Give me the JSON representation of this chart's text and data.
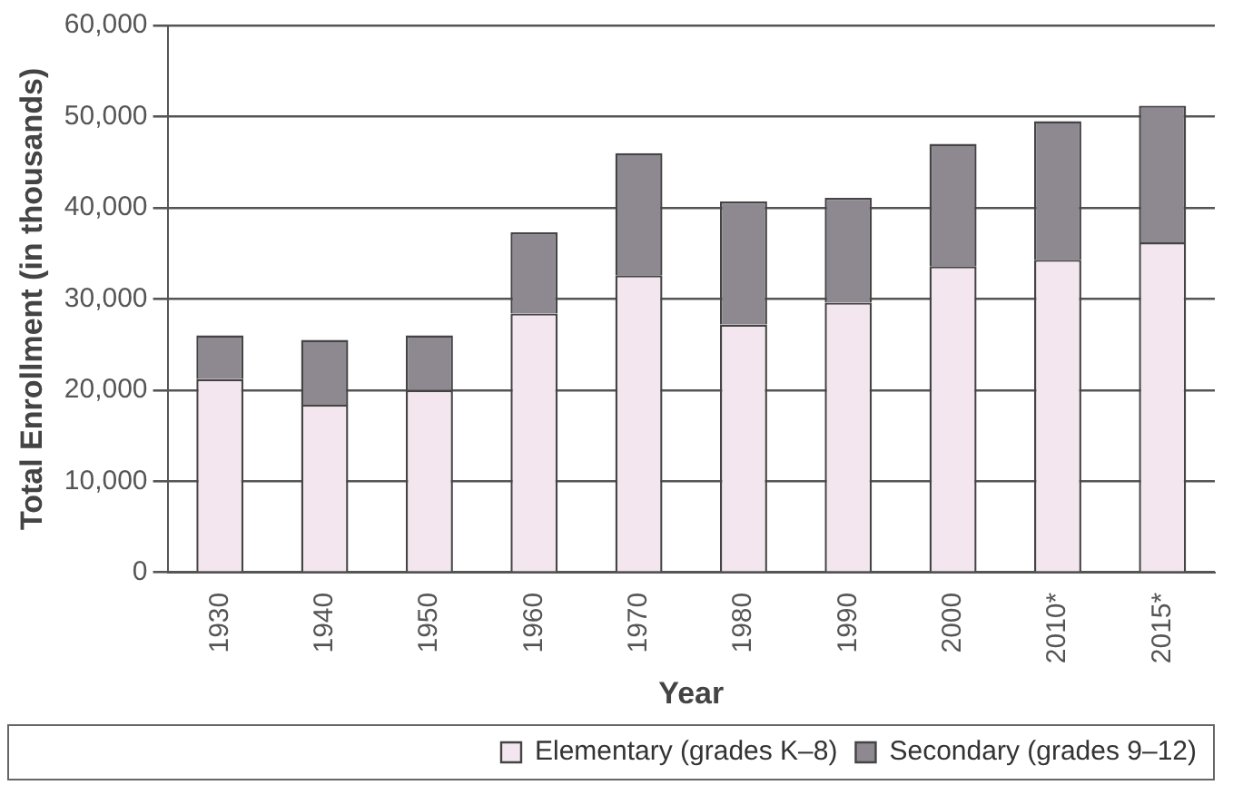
{
  "chart_data": {
    "type": "bar",
    "stacked": true,
    "xlabel": "Year",
    "ylabel": "Total Enrollment (in thousands)",
    "categories": [
      "1930",
      "1940",
      "1950",
      "1960",
      "1970",
      "1980",
      "1990",
      "2000",
      "2010*",
      "2015*"
    ],
    "series": [
      {
        "name": "Elementary (grades K–8)",
        "color": "#f3e6ee",
        "values": [
          21200,
          18400,
          20000,
          28400,
          32600,
          27200,
          29600,
          33600,
          34300,
          36200
        ]
      },
      {
        "name": "Secondary (grades 9–12)",
        "color": "#8e8890",
        "values": [
          4800,
          7100,
          6000,
          8900,
          13400,
          13500,
          11500,
          13400,
          15200,
          15000
        ]
      }
    ],
    "ylim": [
      0,
      60000
    ],
    "yticks": [
      {
        "value": 0,
        "label": "0"
      },
      {
        "value": 10000,
        "label": "10,000"
      },
      {
        "value": 20000,
        "label": "20,000"
      },
      {
        "value": 30000,
        "label": "30,000"
      },
      {
        "value": 40000,
        "label": "40,000"
      },
      {
        "value": 50000,
        "label": "50,000"
      },
      {
        "value": 60000,
        "label": "60,000"
      }
    ],
    "grid": "y",
    "legend": "bottom"
  }
}
